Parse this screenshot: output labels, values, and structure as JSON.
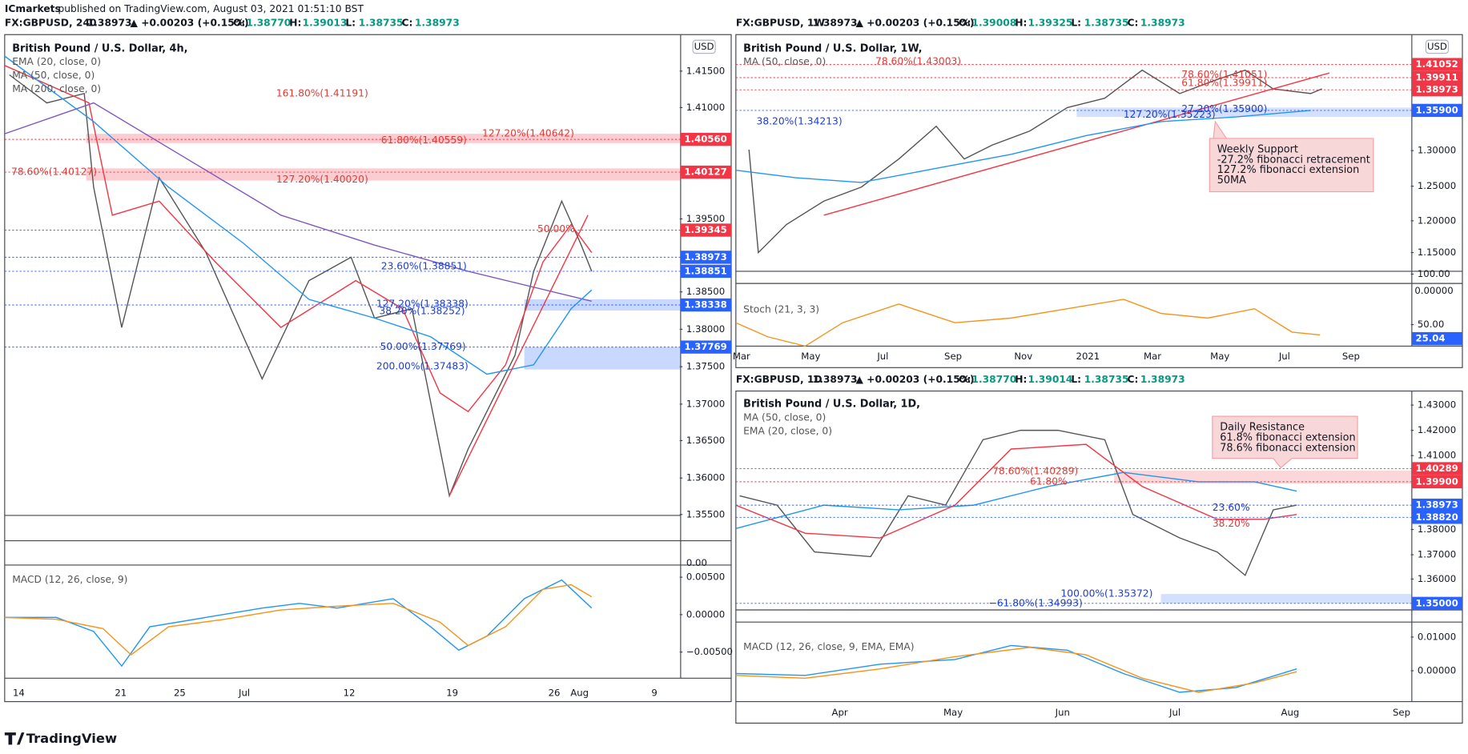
{
  "header": {
    "brand": "ICmarkets",
    "published": "published on TradingView.com, August 03, 2021 01:51:10 BST"
  },
  "panels": [
    {
      "symbol": "FX:GBPUSD, 240",
      "price": "1.38973",
      "change": "▲ +0.00203 (+0.15%)",
      "ohlc": [
        [
          "O:",
          "1.38770"
        ],
        [
          "H:",
          "1.39013"
        ],
        [
          "L:",
          "1.38735"
        ],
        [
          "C:",
          "1.38973"
        ]
      ],
      "title": "British Pound / U.S. Dollar, 4h,",
      "indicators": [
        "EMA (20, close, 0)",
        "MA (50, close, 0)",
        "MA (200, close, 0)"
      ],
      "currency": "USD",
      "price_ticks": [
        "1.41500",
        "1.41000",
        "1.39500",
        "1.38500",
        "1.38000",
        "1.37500",
        "1.37000",
        "1.36500",
        "1.36000",
        "1.35500"
      ],
      "price_boxes": [
        "1.40560",
        "1.40127",
        "1.39345",
        "1.38973",
        "1.38851",
        "1.38338",
        "1.37769"
      ],
      "levels": [
        "161.80%(1.41191)",
        "127.20%(1.40642)",
        "61.80%(1.40559)",
        "78.60%(1.40127)",
        "127.20%(1.40020)",
        "50.00%",
        "23.60%(1.38851)",
        "127.20%(1.38338)",
        "38.20%(1.38252)",
        "50.00%(1.37769)",
        "200.00%(1.37483)"
      ],
      "pane_tick": "0.00",
      "oscillator": "MACD (12, 26, close, 9)",
      "osc_ticks": [
        "0.00500",
        "0.00000",
        "−0.00500"
      ],
      "dates": [
        "14",
        "21",
        "25",
        "Jul",
        "12",
        "19",
        "26",
        "Aug",
        "9"
      ]
    },
    {
      "symbol": "FX:GBPUSD, 1W",
      "price": "1.38973",
      "change": "▲ +0.00203 (+0.15%)",
      "ohlc": [
        [
          "O:",
          "1.39008"
        ],
        [
          "H:",
          "1.39325"
        ],
        [
          "L:",
          "1.38735"
        ],
        [
          "C:",
          "1.38973"
        ]
      ],
      "title": "British Pound / U.S. Dollar, 1W,",
      "indicators": [
        "MA (50, close, 0)"
      ],
      "currency": "USD",
      "price_ticks": [
        "1.30000",
        "1.25000",
        "1.20000",
        "1.15000"
      ],
      "price_boxes": [
        "1.41052",
        "1.39911",
        "1.38973",
        "1.35900"
      ],
      "levels": [
        "78.60%(1.43003)",
        "78.60%(1.41051)",
        "61.80%(1.39911)",
        "27.20%(1.35900)",
        "127.20%(1.35223)",
        "38.20%(1.34213)"
      ],
      "callout": [
        "Weekly Support",
        "-27.2% fibonacci retracement",
        "127.2% fibonacci extension",
        "50MA"
      ],
      "pane_tick": "0.00000",
      "oscillator": "Stoch (21, 3, 3)",
      "osc_ticks": [
        "100.00",
        "50.00"
      ],
      "osc_box": "25.04",
      "dates": [
        "Mar",
        "May",
        "Jul",
        "Sep",
        "Nov",
        "2021",
        "Mar",
        "May",
        "Jul",
        "Sep"
      ]
    },
    {
      "symbol": "FX:GBPUSD, 1D",
      "price": "1.38973",
      "change": "▲ +0.00203 (+0.15%)",
      "ohlc": [
        [
          "O:",
          "1.38770"
        ],
        [
          "H:",
          "1.39014"
        ],
        [
          "L:",
          "1.38735"
        ],
        [
          "C:",
          "1.38973"
        ]
      ],
      "title": "British Pound / U.S. Dollar, 1D,",
      "indicators": [
        "MA (50, close, 0)",
        "EMA (20, close, 0)"
      ],
      "price_ticks": [
        "1.43000",
        "1.42000",
        "1.41000",
        "1.38000",
        "1.37000",
        "1.36000"
      ],
      "price_boxes": [
        "1.40289",
        "1.39900",
        "1.38973",
        "1.38820",
        "1.35000"
      ],
      "levels": [
        "78.60%(1.40289)",
        "61.80%",
        "23.60%",
        "38.20%",
        "100.00%(1.35372)",
        "−61.80%(1.34993)"
      ],
      "callout": [
        "Daily Resistance",
        "61.8% fibonacci extension",
        "78.6% fibonacci extension"
      ],
      "oscillator": "MACD (12, 26, close, 9, EMA, EMA)",
      "osc_ticks": [
        "0.01000",
        "0.00000"
      ],
      "dates": [
        "Apr",
        "May",
        "Jun",
        "Jul",
        "Aug",
        "Sep"
      ]
    }
  ],
  "footer": {
    "logo": "TradingView"
  }
}
